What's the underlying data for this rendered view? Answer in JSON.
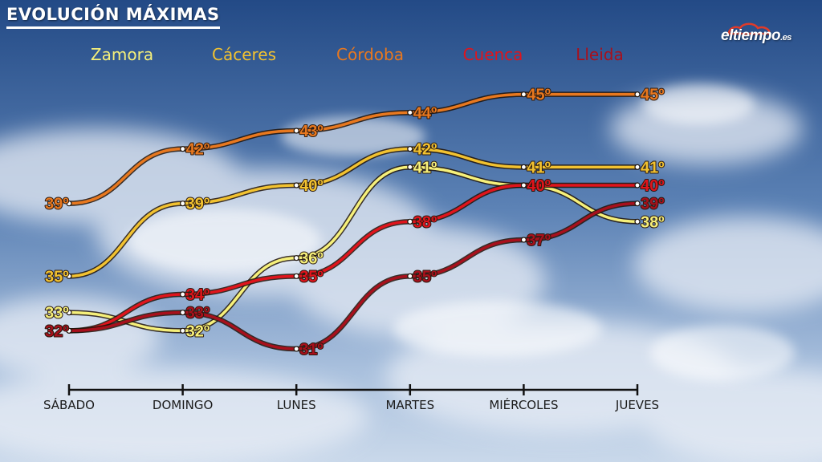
{
  "title": "EVOLUCIÓN MÁXIMAS",
  "logo": {
    "name": "eltiempo",
    "tld": ".es"
  },
  "chart_data": {
    "type": "line",
    "categories": [
      "SÁBADO",
      "DOMINGO",
      "LUNES",
      "MARTES",
      "MIÉRCOLES",
      "JUEVES"
    ],
    "unit": "º",
    "grid": false,
    "legend_position": "top",
    "series": [
      {
        "name": "Zamora",
        "color": "#f6f07a",
        "values": [
          33,
          32,
          36,
          41,
          40,
          38
        ]
      },
      {
        "name": "Cáceres",
        "color": "#f2c230",
        "values": [
          35,
          39,
          40,
          42,
          41,
          41
        ]
      },
      {
        "name": "Córdoba",
        "color": "#e8781f",
        "values": [
          39,
          42,
          43,
          44,
          45,
          45
        ]
      },
      {
        "name": "Cuenca",
        "color": "#e0141c",
        "values": [
          32,
          34,
          35,
          38,
          40,
          40
        ]
      },
      {
        "name": "Lleida",
        "color": "#a8101c",
        "values": [
          32,
          33,
          31,
          35,
          37,
          39
        ]
      }
    ]
  }
}
